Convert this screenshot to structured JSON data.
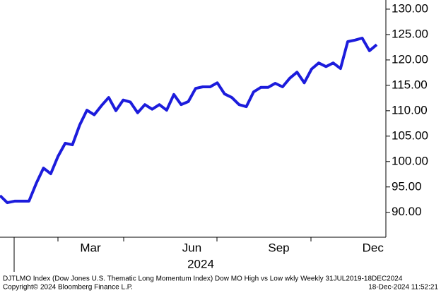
{
  "chart_data": {
    "type": "line",
    "xlabel": "2024",
    "footer_line": "DJTLMO Index (Dow Jones U.S. Thematic Long Momentum Index) Dow MO High vs Low wkly  Weekly 31JUL2019-18DEC2024",
    "copyright": "Copyright© 2024 Bloomberg Finance L.P.",
    "timestamp": "18-Dec-2024 11:52:21",
    "categories": [
      null,
      null,
      null,
      null,
      null,
      null,
      null,
      null,
      null,
      null,
      null,
      null,
      "Mar",
      null,
      null,
      null,
      null,
      null,
      null,
      null,
      null,
      null,
      null,
      null,
      null,
      null,
      "Jun",
      null,
      null,
      null,
      null,
      null,
      null,
      null,
      null,
      null,
      null,
      null,
      "Sep",
      null,
      null,
      null,
      null,
      null,
      null,
      null,
      null,
      null,
      null,
      null,
      null,
      "Dec",
      null
    ],
    "series": [
      {
        "color": "#1c1cdc",
        "values": [
          93.3,
          91.9,
          92.2,
          92.2,
          92.2,
          95.7,
          98.7,
          97.6,
          101.0,
          103.6,
          103.3,
          107.2,
          110.1,
          109.2,
          111.0,
          112.6,
          110.0,
          112.1,
          111.7,
          109.6,
          111.2,
          110.3,
          111.2,
          110.1,
          113.2,
          111.2,
          111.8,
          114.4,
          114.7,
          114.7,
          115.5,
          113.3,
          112.6,
          111.2,
          110.8,
          113.7,
          114.6,
          114.6,
          115.4,
          114.7,
          116.4,
          117.6,
          115.5,
          118.2,
          119.4,
          118.7,
          119.4,
          118.3,
          123.6,
          123.9,
          124.3,
          121.8,
          123.0
        ]
      }
    ],
    "ylim": [
      85.1,
      131.8
    ],
    "yticks": [
      {
        "value": 90,
        "label": "90.00"
      },
      {
        "value": 95,
        "label": "95.00"
      },
      {
        "value": 100,
        "label": "100.00"
      },
      {
        "value": 105,
        "label": "105.00"
      },
      {
        "value": 110,
        "label": "110.00"
      },
      {
        "value": 115,
        "label": "115.00"
      },
      {
        "value": 120,
        "label": "120.00"
      },
      {
        "value": 125,
        "label": "125.00"
      },
      {
        "value": 130,
        "label": "130.00"
      }
    ]
  }
}
